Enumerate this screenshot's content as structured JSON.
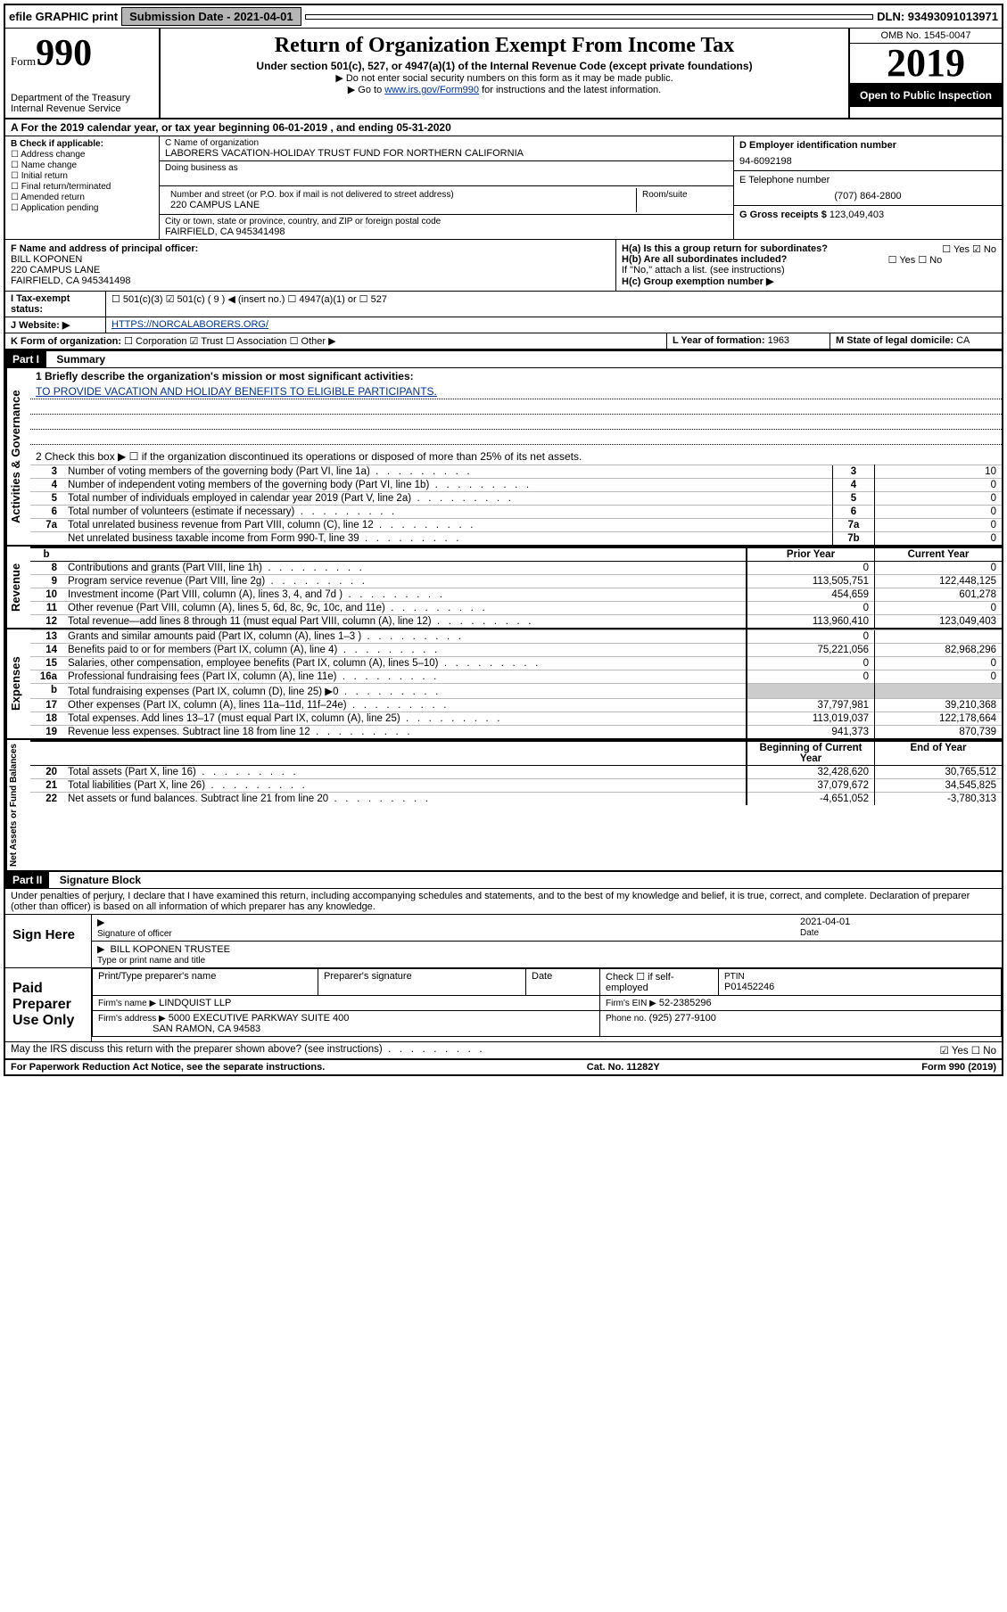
{
  "topbar": {
    "efile": "efile GRAPHIC print",
    "submission_label": "Submission Date - 2021-04-01",
    "dln": "DLN: 93493091013971"
  },
  "header": {
    "form": "Form",
    "form_num": "990",
    "dept1": "Department of the Treasury",
    "dept2": "Internal Revenue Service",
    "title": "Return of Organization Exempt From Income Tax",
    "subtitle": "Under section 501(c), 527, or 4947(a)(1) of the Internal Revenue Code (except private foundations)",
    "note1": "▶ Do not enter social security numbers on this form as it may be made public.",
    "note2a": "▶ Go to ",
    "note2b": "www.irs.gov/Form990",
    "note2c": " for instructions and the latest information.",
    "omb": "OMB No. 1545-0047",
    "year": "2019",
    "inspection": "Open to Public Inspection"
  },
  "rowA": "A For the 2019 calendar year, or tax year beginning 06-01-2019   , and ending 05-31-2020",
  "B": {
    "label": "B Check if applicable:",
    "opts": [
      "Address change",
      "Name change",
      "Initial return",
      "Final return/terminated",
      "Amended return",
      "Application pending"
    ]
  },
  "C": {
    "name_label": "C Name of organization",
    "name": "LABORERS VACATION-HOLIDAY TRUST FUND FOR NORTHERN CALIFORNIA",
    "dba_label": "Doing business as",
    "addr_label": "Number and street (or P.O. box if mail is not delivered to street address)",
    "room_label": "Room/suite",
    "addr": "220 CAMPUS LANE",
    "city_label": "City or town, state or province, country, and ZIP or foreign postal code",
    "city": "FAIRFIELD, CA  945341498"
  },
  "D": {
    "label": "D Employer identification number",
    "value": "94-6092198"
  },
  "E": {
    "label": "E Telephone number",
    "value": "(707) 864-2800"
  },
  "G": {
    "label": "G Gross receipts $",
    "value": "123,049,403"
  },
  "F": {
    "label": "F  Name and address of principal officer:",
    "name": "BILL KOPONEN",
    "addr1": "220 CAMPUS LANE",
    "addr2": "FAIRFIELD, CA  945341498"
  },
  "H": {
    "a": "H(a)  Is this a group return for subordinates?",
    "a_ans": "☐ Yes   ☑ No",
    "b": "H(b)  Are all subordinates included?",
    "b_ans": "☐ Yes   ☐ No",
    "b_note": "If \"No,\" attach a list. (see instructions)",
    "c": "H(c)  Group exemption number ▶"
  },
  "I": {
    "label": "I  Tax-exempt status:",
    "opts": "☐ 501(c)(3)   ☑ 501(c) ( 9 ) ◀ (insert no.)   ☐ 4947(a)(1) or   ☐ 527"
  },
  "J": {
    "label": "J  Website: ▶",
    "value": "HTTPS://NORCALABORERS.ORG/"
  },
  "K": {
    "label": "K Form of organization:",
    "opts": "☐ Corporation   ☑ Trust   ☐ Association   ☐ Other ▶"
  },
  "L": {
    "label": "L Year of formation:",
    "value": "1963"
  },
  "M": {
    "label": "M State of legal domicile:",
    "value": "CA"
  },
  "part1": {
    "header": "Part I",
    "label": "Summary"
  },
  "summary": {
    "l1": "1   Briefly describe the organization's mission or most significant activities:",
    "mission": "TO PROVIDE VACATION AND HOLIDAY BENEFITS TO ELIGIBLE PARTICIPANTS.",
    "l2": "2   Check this box ▶ ☐  if the organization discontinued its operations or disposed of more than 25% of its net assets.",
    "rows_gov": [
      {
        "n": "3",
        "t": "Number of voting members of the governing body (Part VI, line 1a)",
        "box": "3",
        "v": "10"
      },
      {
        "n": "4",
        "t": "Number of independent voting members of the governing body (Part VI, line 1b)",
        "box": "4",
        "v": "0"
      },
      {
        "n": "5",
        "t": "Total number of individuals employed in calendar year 2019 (Part V, line 2a)",
        "box": "5",
        "v": "0"
      },
      {
        "n": "6",
        "t": "Total number of volunteers (estimate if necessary)",
        "box": "6",
        "v": "0"
      },
      {
        "n": "7a",
        "t": "Total unrelated business revenue from Part VIII, column (C), line 12",
        "box": "7a",
        "v": "0"
      },
      {
        "n": "",
        "t": "Net unrelated business taxable income from Form 990-T, line 39",
        "box": "7b",
        "v": "0"
      }
    ],
    "hdr_prior": "Prior Year",
    "hdr_current": "Current Year",
    "rows_rev": [
      {
        "n": "8",
        "t": "Contributions and grants (Part VIII, line 1h)",
        "p": "0",
        "c": "0"
      },
      {
        "n": "9",
        "t": "Program service revenue (Part VIII, line 2g)",
        "p": "113,505,751",
        "c": "122,448,125"
      },
      {
        "n": "10",
        "t": "Investment income (Part VIII, column (A), lines 3, 4, and 7d )",
        "p": "454,659",
        "c": "601,278"
      },
      {
        "n": "11",
        "t": "Other revenue (Part VIII, column (A), lines 5, 6d, 8c, 9c, 10c, and 11e)",
        "p": "0",
        "c": "0"
      },
      {
        "n": "12",
        "t": "Total revenue—add lines 8 through 11 (must equal Part VIII, column (A), line 12)",
        "p": "113,960,410",
        "c": "123,049,403"
      }
    ],
    "rows_exp": [
      {
        "n": "13",
        "t": "Grants and similar amounts paid (Part IX, column (A), lines 1–3 )",
        "p": "0",
        "c": ""
      },
      {
        "n": "14",
        "t": "Benefits paid to or for members (Part IX, column (A), line 4)",
        "p": "75,221,056",
        "c": "82,968,296"
      },
      {
        "n": "15",
        "t": "Salaries, other compensation, employee benefits (Part IX, column (A), lines 5–10)",
        "p": "0",
        "c": "0"
      },
      {
        "n": "16a",
        "t": "Professional fundraising fees (Part IX, column (A), line 11e)",
        "p": "0",
        "c": "0"
      },
      {
        "n": "b",
        "t": "Total fundraising expenses (Part IX, column (D), line 25) ▶0",
        "p": "",
        "c": "",
        "shaded": true
      },
      {
        "n": "17",
        "t": "Other expenses (Part IX, column (A), lines 11a–11d, 11f–24e)",
        "p": "37,797,981",
        "c": "39,210,368"
      },
      {
        "n": "18",
        "t": "Total expenses. Add lines 13–17 (must equal Part IX, column (A), line 25)",
        "p": "113,019,037",
        "c": "122,178,664"
      },
      {
        "n": "19",
        "t": "Revenue less expenses. Subtract line 18 from line 12",
        "p": "941,373",
        "c": "870,739"
      }
    ],
    "hdr_begin": "Beginning of Current Year",
    "hdr_end": "End of Year",
    "rows_net": [
      {
        "n": "20",
        "t": "Total assets (Part X, line 16)",
        "p": "32,428,620",
        "c": "30,765,512"
      },
      {
        "n": "21",
        "t": "Total liabilities (Part X, line 26)",
        "p": "37,079,672",
        "c": "34,545,825"
      },
      {
        "n": "22",
        "t": "Net assets or fund balances. Subtract line 21 from line 20",
        "p": "-4,651,052",
        "c": "-3,780,313"
      }
    ]
  },
  "vlabels": {
    "gov": "Activities & Governance",
    "rev": "Revenue",
    "exp": "Expenses",
    "net": "Net Assets or Fund Balances"
  },
  "part2": {
    "header": "Part II",
    "label": "Signature Block"
  },
  "perjury": "Under penalties of perjury, I declare that I have examined this return, including accompanying schedules and statements, and to the best of my knowledge and belief, it is true, correct, and complete. Declaration of preparer (other than officer) is based on all information of which preparer has any knowledge.",
  "sign": {
    "label": "Sign Here",
    "sig_label": "Signature of officer",
    "date_label": "Date",
    "date": "2021-04-01",
    "name": "BILL KOPONEN  TRUSTEE",
    "name_label": "Type or print name and title"
  },
  "prep": {
    "label": "Paid Preparer Use Only",
    "h1": "Print/Type preparer's name",
    "h2": "Preparer's signature",
    "h3": "Date",
    "h4": "Check ☐  if self-employed",
    "h5_l": "PTIN",
    "h5": "P01452246",
    "firm_l": "Firm's name    ▶",
    "firm": "LINDQUIST LLP",
    "ein_l": "Firm's EIN ▶",
    "ein": "52-2385296",
    "addr_l": "Firm's address ▶",
    "addr1": "5000 EXECUTIVE PARKWAY SUITE 400",
    "addr2": "SAN RAMON, CA  94583",
    "phone_l": "Phone no.",
    "phone": "(925) 277-9100"
  },
  "discuss": {
    "q": "May the IRS discuss this return with the preparer shown above? (see instructions)",
    "a": "☑ Yes   ☐ No"
  },
  "footer": {
    "l": "For Paperwork Reduction Act Notice, see the separate instructions.",
    "m": "Cat. No. 11282Y",
    "r": "Form 990 (2019)"
  }
}
